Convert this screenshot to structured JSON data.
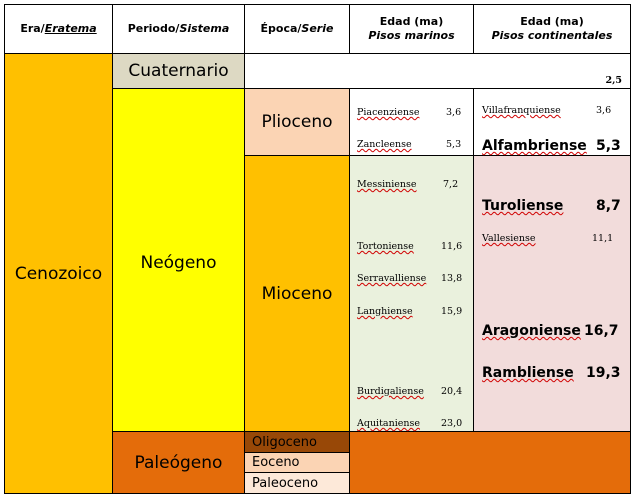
{
  "header": {
    "era_prefix": "Era/",
    "era_suffix": "Eratema",
    "period_prefix": "Periodo/",
    "period_suffix": "Sistema",
    "epoch_prefix": "Época/",
    "epoch_suffix": "Serie",
    "marine_title": "Edad (ma)",
    "marine_sub": "Pisos marinos",
    "continental_title": "Edad (ma)",
    "continental_sub": "Pisos continentales"
  },
  "era": "Cenozoico",
  "periods": {
    "cuaternario": "Cuaternario",
    "cuaternario_age": "2,5",
    "neogeno": "Neógeno",
    "paleogeno": "Paleógeno"
  },
  "epochs": {
    "plioceno": "Plioceno",
    "mioceno": "Mioceno",
    "oligoceno": "Oligoceno",
    "eoceno": "Eoceno",
    "paleoceno": "Paleoceno"
  },
  "marine": [
    {
      "name": "Piacenziense",
      "age": "3,6"
    },
    {
      "name": "Zancleense",
      "age": "5,3"
    },
    {
      "name": "Messiniense",
      "age": "7,2"
    },
    {
      "name": "Tortoniense",
      "age": "11,6"
    },
    {
      "name": "Serravalliense",
      "age": "13,8"
    },
    {
      "name": "Langhiense",
      "age": "15,9"
    },
    {
      "name": "Burdigaliense",
      "age": "20,4"
    },
    {
      "name": "Aquitaniense",
      "age": "23,0"
    }
  ],
  "continental": [
    {
      "name": "Villafranquiense",
      "age": "3,6"
    },
    {
      "name": "Alfambriense",
      "age": "5,3"
    },
    {
      "name": "Turoliense",
      "age": "8,7"
    },
    {
      "name": "Vallesiense",
      "age": "11,1"
    },
    {
      "name": "Aragoniense",
      "age": "16,7"
    },
    {
      "name": "Rambliense",
      "age": "19,3"
    }
  ],
  "colors": {
    "cenozoico": "#ffc000",
    "cuaternario": "#ddd9c3",
    "neogeno": "#ffff00",
    "plioceno": "#fbd4b4",
    "mioceno": "#ffc000",
    "paleogeno": "#e46c0a",
    "oligoceno": "#984807",
    "eoceno": "#fbd4b4",
    "paleoceno": "#fde9d9",
    "marine_bg": "#eaf1dd",
    "continental_bg": "#f2dcdb"
  }
}
